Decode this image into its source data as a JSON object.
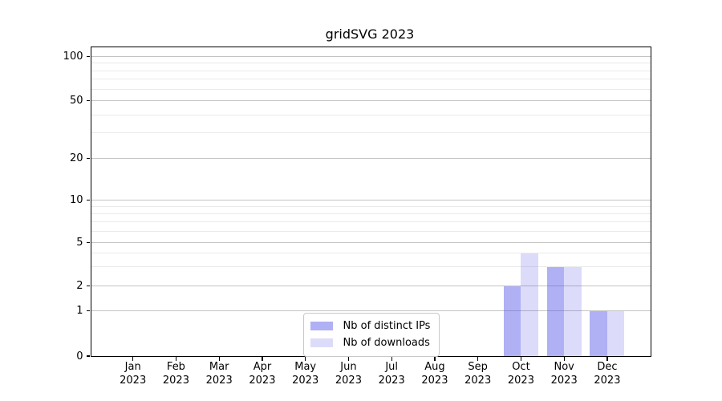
{
  "chart_data": {
    "type": "bar",
    "title": "gridSVG 2023",
    "categories": [
      "Jan",
      "Feb",
      "Mar",
      "Apr",
      "May",
      "Jun",
      "Jul",
      "Aug",
      "Sep",
      "Oct",
      "Nov",
      "Dec"
    ],
    "x_year_line": "2023",
    "series": [
      {
        "name": "Nb of distinct IPs",
        "color": "rgba(80,80,230,0.45)",
        "values": [
          0,
          0,
          0,
          0,
          0,
          0,
          0,
          0,
          0,
          2,
          3,
          1
        ]
      },
      {
        "name": "Nb of downloads",
        "color": "rgba(80,80,230,0.20)",
        "values": [
          0,
          0,
          0,
          0,
          0,
          0,
          0,
          0,
          0,
          4,
          3,
          1
        ]
      }
    ],
    "y_axis": {
      "major_ticks": [
        0,
        1,
        2,
        5,
        10,
        20,
        50,
        100
      ],
      "minor_ticks": [
        3,
        4,
        6,
        7,
        8,
        9,
        30,
        40,
        60,
        70,
        80,
        90
      ],
      "scale": "log above 1, linear 0-1",
      "range": [
        0,
        115
      ]
    },
    "grid": {
      "horizontal_major": true,
      "horizontal_minor": true,
      "vertical": false
    },
    "legend": {
      "position": "lower center inside",
      "items": [
        "Nb of distinct IPs",
        "Nb of downloads"
      ]
    },
    "colors": {
      "grid_major": "#c4c4c4",
      "grid_minor": "#eaeaea",
      "axis": "#000000",
      "legend_border": "#c8c8c8",
      "background": "#ffffff",
      "text": "#000000"
    }
  }
}
